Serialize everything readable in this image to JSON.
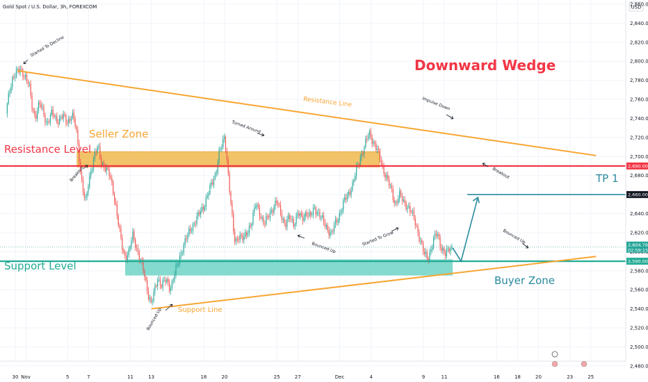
{
  "chart_data": {
    "type": "candlestick",
    "title": "Gold Spot / U.S. Dollar, 3h, FOREXCOM",
    "currency": "USD",
    "headline": "Downward Wedge",
    "ylim": [
      2470,
      2880
    ],
    "y_ticks": [
      2480,
      2500,
      2520,
      2540,
      2560,
      2580,
      2600,
      2620,
      2640,
      2660,
      2680,
      2700,
      2720,
      2740,
      2760,
      2780,
      2800,
      2820,
      2840,
      2860
    ],
    "x_ticks": [
      {
        "label": "30",
        "x": 0
      },
      {
        "label": "Nov",
        "x": 1
      },
      {
        "label": "5",
        "x": 5
      },
      {
        "label": "7",
        "x": 7
      },
      {
        "label": "11",
        "x": 11
      },
      {
        "label": "13",
        "x": 13
      },
      {
        "label": "18",
        "x": 18
      },
      {
        "label": "20",
        "x": 20
      },
      {
        "label": "25",
        "x": 25
      },
      {
        "label": "27",
        "x": 27
      },
      {
        "label": "Dec",
        "x": 31
      },
      {
        "label": "4",
        "x": 34
      },
      {
        "label": "9",
        "x": 39
      },
      {
        "label": "11",
        "x": 41
      },
      {
        "label": "16",
        "x": 46
      },
      {
        "label": "18",
        "x": 48
      },
      {
        "label": "20",
        "x": 50
      },
      {
        "label": "23",
        "x": 53
      },
      {
        "label": "25",
        "x": 55
      }
    ],
    "price_path": [
      [
        -0.9,
        2745
      ],
      [
        -0.6,
        2765
      ],
      [
        -0.3,
        2782
      ],
      [
        0,
        2788
      ],
      [
        0.5,
        2790
      ],
      [
        0.9,
        2786
      ],
      [
        1.3,
        2775
      ],
      [
        1.6,
        2752
      ],
      [
        1.9,
        2742
      ],
      [
        2.3,
        2756
      ],
      [
        2.6,
        2748
      ],
      [
        3.0,
        2735
      ],
      [
        3.5,
        2745
      ],
      [
        4.0,
        2738
      ],
      [
        4.5,
        2742
      ],
      [
        5.0,
        2736
      ],
      [
        5.4,
        2745
      ],
      [
        5.8,
        2730
      ],
      [
        6.0,
        2710
      ],
      [
        6.2,
        2688
      ],
      [
        6.4,
        2670
      ],
      [
        6.7,
        2650
      ],
      [
        7.0,
        2672
      ],
      [
        7.3,
        2690
      ],
      [
        7.6,
        2702
      ],
      [
        7.9,
        2710
      ],
      [
        8.2,
        2695
      ],
      [
        8.6,
        2688
      ],
      [
        9.0,
        2680
      ],
      [
        9.3,
        2668
      ],
      [
        9.6,
        2648
      ],
      [
        9.9,
        2625
      ],
      [
        10.2,
        2605
      ],
      [
        10.5,
        2595
      ],
      [
        10.9,
        2600
      ],
      [
        11.2,
        2618
      ],
      [
        11.5,
        2608
      ],
      [
        11.8,
        2596
      ],
      [
        12.1,
        2585
      ],
      [
        12.4,
        2572
      ],
      [
        12.7,
        2556
      ],
      [
        13.0,
        2545
      ],
      [
        13.3,
        2558
      ],
      [
        13.6,
        2572
      ],
      [
        14.0,
        2565
      ],
      [
        14.4,
        2570
      ],
      [
        14.8,
        2562
      ],
      [
        15.2,
        2575
      ],
      [
        15.6,
        2590
      ],
      [
        16.0,
        2605
      ],
      [
        16.4,
        2615
      ],
      [
        16.8,
        2625
      ],
      [
        17.2,
        2632
      ],
      [
        17.6,
        2640
      ],
      [
        18.0,
        2648
      ],
      [
        18.4,
        2660
      ],
      [
        18.8,
        2672
      ],
      [
        19.2,
        2685
      ],
      [
        19.5,
        2705
      ],
      [
        19.8,
        2712
      ],
      [
        20.0,
        2722
      ],
      [
        20.2,
        2700
      ],
      [
        20.4,
        2675
      ],
      [
        20.6,
        2650
      ],
      [
        20.8,
        2625
      ],
      [
        21.0,
        2610
      ],
      [
        21.4,
        2618
      ],
      [
        21.8,
        2612
      ],
      [
        22.2,
        2622
      ],
      [
        22.6,
        2632
      ],
      [
        23.0,
        2650
      ],
      [
        23.4,
        2640
      ],
      [
        23.8,
        2628
      ],
      [
        24.2,
        2638
      ],
      [
        24.6,
        2646
      ],
      [
        25.0,
        2652
      ],
      [
        25.4,
        2640
      ],
      [
        25.8,
        2628
      ],
      [
        26.2,
        2636
      ],
      [
        26.6,
        2630
      ],
      [
        27.0,
        2640
      ],
      [
        27.4,
        2634
      ],
      [
        27.8,
        2642
      ],
      [
        28.2,
        2636
      ],
      [
        28.6,
        2646
      ],
      [
        29.0,
        2640
      ],
      [
        29.4,
        2632
      ],
      [
        29.8,
        2625
      ],
      [
        30.2,
        2618
      ],
      [
        30.6,
        2630
      ],
      [
        31.0,
        2640
      ],
      [
        31.4,
        2652
      ],
      [
        31.8,
        2660
      ],
      [
        32.2,
        2670
      ],
      [
        32.6,
        2685
      ],
      [
        33.0,
        2700
      ],
      [
        33.4,
        2712
      ],
      [
        33.8,
        2724
      ],
      [
        34.1,
        2718
      ],
      [
        34.4,
        2712
      ],
      [
        34.8,
        2700
      ],
      [
        35.1,
        2688
      ],
      [
        35.5,
        2678
      ],
      [
        35.9,
        2665
      ],
      [
        36.3,
        2650
      ],
      [
        36.7,
        2660
      ],
      [
        37.1,
        2652
      ],
      [
        37.5,
        2648
      ],
      [
        37.9,
        2640
      ],
      [
        38.3,
        2628
      ],
      [
        38.7,
        2612
      ],
      [
        39.1,
        2596
      ],
      [
        39.5,
        2595
      ],
      [
        39.9,
        2610
      ],
      [
        40.3,
        2620
      ],
      [
        40.7,
        2605
      ],
      [
        41.1,
        2596
      ],
      [
        41.5,
        2604
      ],
      [
        41.8,
        2604
      ]
    ],
    "resistance_level": {
      "label": "Resistance Level",
      "value": 2690,
      "tag": "2,690.00"
    },
    "support_level": {
      "label": "Support Level",
      "value": 2590,
      "tag": "2,590.00"
    },
    "tp": {
      "label": "TP 1",
      "value": 2660,
      "tag": "2,660.00"
    },
    "current_price": {
      "value": 2604.79,
      "tag": "2,604.79",
      "countdown": "02:59:15"
    },
    "seller_zone": {
      "label": "Seller Zone",
      "x": [
        5.9,
        34.8
      ],
      "y": [
        2689,
        2705
      ]
    },
    "buyer_zone": {
      "label": "Buyer Zone",
      "x": [
        10.5,
        41.8
      ],
      "y": [
        2575,
        2592
      ]
    },
    "resistance_line": {
      "label": "Resistance Line",
      "from": [
        0.2,
        2790
      ],
      "to": [
        55.5,
        2701
      ]
    },
    "support_line": {
      "label": "Support Line",
      "from": [
        13.0,
        2540
      ],
      "to": [
        55.5,
        2595
      ]
    },
    "projection": [
      [
        41.8,
        2604
      ],
      [
        42.6,
        2590
      ],
      [
        44.2,
        2657
      ]
    ],
    "annotations": {
      "started_to_decline": "Started To Decline",
      "breakout_1": "Breakout",
      "bounced_up_1": "Bounced Up",
      "turned_around": "Turned Around",
      "bounced_up_2": "Bounced Up",
      "started_to_grow": "Started To Grow",
      "impulse_down": "Impulse Down",
      "breakout_2": "Breakout",
      "bounced_up_3": "Bounced Up"
    },
    "colors": {
      "up": "#26a69a",
      "down": "#ef5350",
      "resistance": "#f23645",
      "support": "#22ab94",
      "wedge": "#f7a531",
      "seller_zone": "#f0b94e",
      "buyer_zone": "#6ed3c5",
      "headline": "#f23645",
      "projection": "#2a8a9e"
    }
  }
}
